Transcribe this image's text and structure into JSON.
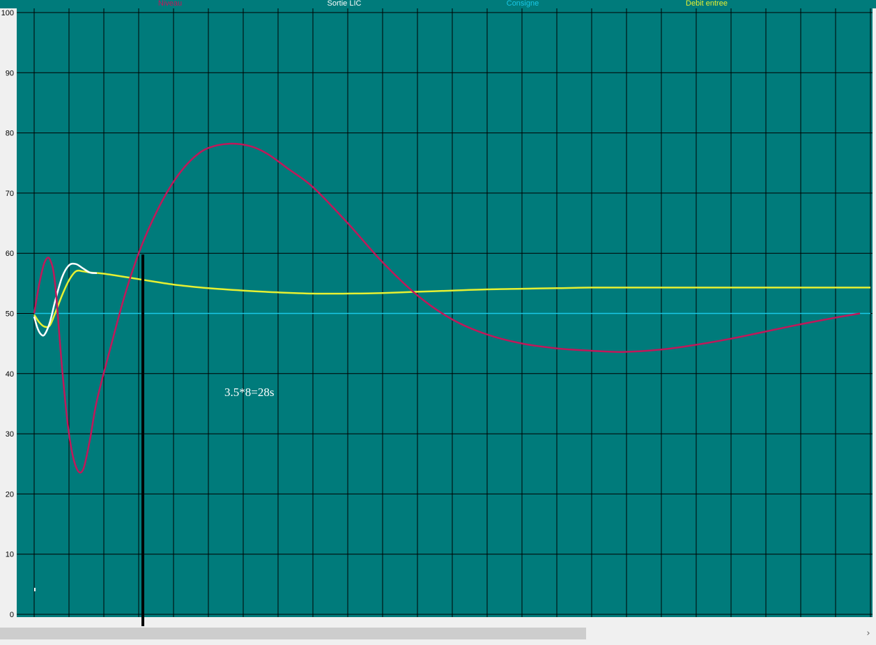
{
  "chart_data": {
    "type": "line",
    "title": "",
    "xlabel": "",
    "ylabel": "",
    "ylim": [
      0,
      100
    ],
    "xlim": [
      0,
      24
    ],
    "yticks": [
      "0",
      "10",
      "20",
      "30",
      "40",
      "50",
      "60",
      "70",
      "80",
      "90",
      "100"
    ],
    "grid": true,
    "legend_position": "top",
    "background_color": "#007b7b",
    "series": [
      {
        "name": "Niveau",
        "color": "#c0185a",
        "x": [
          0.0,
          0.15,
          0.3,
          0.45,
          0.6,
          0.8,
          1.0,
          1.2,
          1.4,
          1.6,
          1.8,
          2.2,
          2.6,
          3.0,
          3.4,
          3.8,
          4.2,
          4.6,
          5.0,
          5.6,
          6.2,
          6.7,
          7.3,
          8.0,
          9.0,
          10.0,
          11.0,
          12.0,
          13.0,
          14.0,
          15.0,
          16.0,
          16.9,
          18.0,
          19.0,
          20.0,
          21.0,
          22.0,
          23.0,
          23.7
        ],
        "y": [
          50,
          55,
          58.5,
          59,
          55,
          41,
          30,
          24.5,
          24,
          29,
          35.5,
          44.5,
          53,
          60,
          65.5,
          70,
          73.5,
          76,
          77.5,
          78.2,
          77.8,
          76.5,
          74,
          71,
          65,
          58.5,
          53,
          49,
          46.5,
          45,
          44.2,
          43.8,
          43.6,
          44,
          44.8,
          45.8,
          47,
          48.2,
          49.3,
          50
        ]
      },
      {
        "name": "Sortie LIC",
        "color": "#ffffff",
        "x": [
          0.0,
          0.1,
          0.2,
          0.3,
          0.45,
          0.6,
          0.8,
          1.0,
          1.2,
          1.4,
          1.6,
          1.8
        ],
        "y": [
          49.5,
          47.5,
          46.5,
          46.5,
          48.5,
          52,
          56,
          58,
          58.2,
          57.5,
          56.8,
          56.7
        ]
      },
      {
        "name": "Consigne",
        "color": "#19c8e6",
        "x": [
          0.0,
          24.0
        ],
        "y": [
          50,
          50
        ]
      },
      {
        "name": "Debit entree",
        "color": "#e6f032",
        "x": [
          0.0,
          0.15,
          0.3,
          0.45,
          0.6,
          0.8,
          1.0,
          1.2,
          1.4,
          1.6,
          2.0,
          3.0,
          4.0,
          5.0,
          6.0,
          7.0,
          8.0,
          9.0,
          10.0,
          11.0,
          12.0,
          13.0,
          14.0,
          15.0,
          16.0,
          17.0,
          18.0,
          19.0,
          20.0,
          21.0,
          22.0,
          23.0,
          24.0
        ],
        "y": [
          49.8,
          48.5,
          47.8,
          48,
          50,
          53,
          55.5,
          57,
          57,
          56.8,
          56.6,
          55.7,
          54.8,
          54.2,
          53.8,
          53.5,
          53.3,
          53.3,
          53.4,
          53.6,
          53.8,
          54.0,
          54.1,
          54.2,
          54.3,
          54.3,
          54.3,
          54.3,
          54.3,
          54.3,
          54.3,
          54.3,
          54.3
        ]
      }
    ],
    "annotations": [
      {
        "text": "3.5*8=28s"
      }
    ]
  },
  "scrollbar": {
    "right_arrow": "›"
  }
}
